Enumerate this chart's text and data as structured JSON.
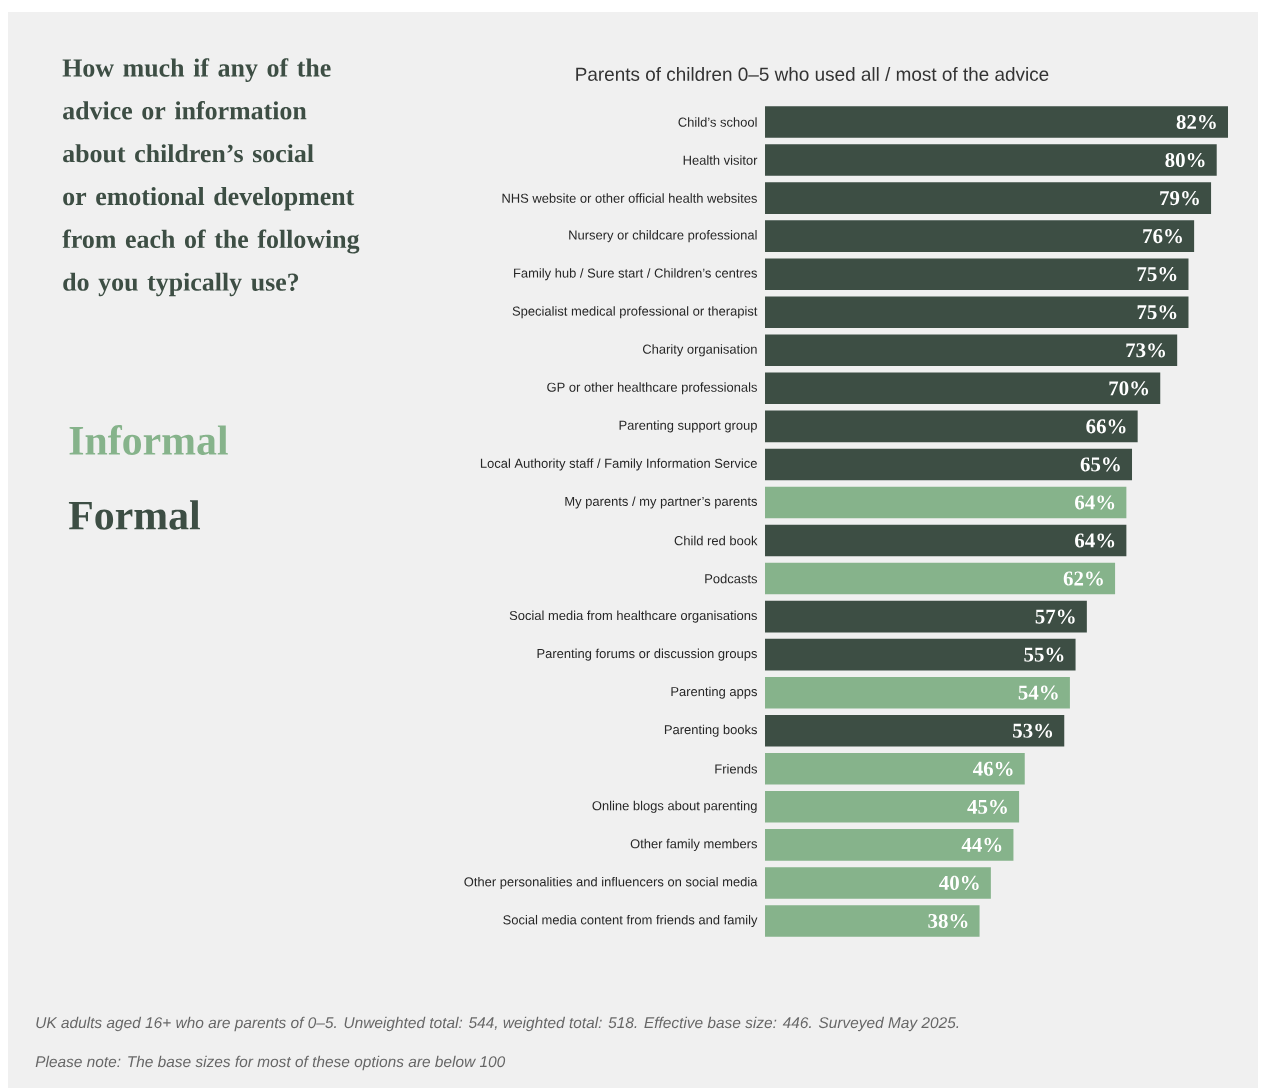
{
  "chart_data": {
    "type": "bar",
    "orientation": "horizontal",
    "title": "How much if any of the advice or information about children’s social or emotional development from each of the following do you typically use?",
    "subtitle": "Parents of children 0–5 who used all / most of the advice",
    "categories": [
      "Child’s school",
      "Health visitor",
      "NHS website or other official health websites",
      "Nursery or childcare professional",
      "Family hub / Sure start / Children’s centres",
      "Specialist medical professional or therapist",
      "Charity organisation",
      "GP or other healthcare professionals",
      "Parenting support group",
      "Local Authority staff / Family Information Service",
      "My parents / my partner’s parents",
      "Child red book",
      "Podcasts",
      "Social media from healthcare organisations",
      "Parenting forums or discussion groups",
      "Parenting apps",
      "Parenting books",
      "Friends",
      "Online blogs about parenting",
      "Other family members",
      "Other personalities and influencers on social media",
      "Social media content from friends and family"
    ],
    "series": [
      {
        "name": "Informal",
        "color": "#86b38b",
        "values": [
          null,
          null,
          null,
          null,
          null,
          null,
          null,
          null,
          null,
          null,
          64,
          null,
          62,
          null,
          null,
          54,
          null,
          46,
          45,
          44,
          40,
          38
        ],
        "value_labels": [
          null,
          null,
          null,
          null,
          null,
          null,
          null,
          null,
          null,
          null,
          "64%",
          null,
          "62%",
          null,
          null,
          "54%",
          null,
          "46%",
          "45%",
          "44%",
          "40%",
          "38%"
        ]
      },
      {
        "name": "Formal",
        "color": "#3d4e44",
        "values": [
          82,
          80,
          79,
          76,
          75,
          75,
          73,
          70,
          66,
          65,
          null,
          64,
          null,
          57,
          55,
          null,
          53,
          null,
          null,
          null,
          null,
          null
        ],
        "value_labels": [
          "82%",
          "80%",
          "79%",
          "76%",
          "75%",
          "75%",
          "73%",
          "70%",
          "66%",
          "65%",
          null,
          "64%",
          null,
          "57%",
          "55%",
          null,
          "53%",
          null,
          null,
          null,
          null,
          null
        ]
      }
    ],
    "annotations": [
      "UK adults aged 16+ who are parents of 0–5. Unweighted total: 544, weighted total: 518. Effective base size: 446. Surveyed May 2025.",
      "Please note: The base sizes for most of these options are below 100"
    ]
  }
}
